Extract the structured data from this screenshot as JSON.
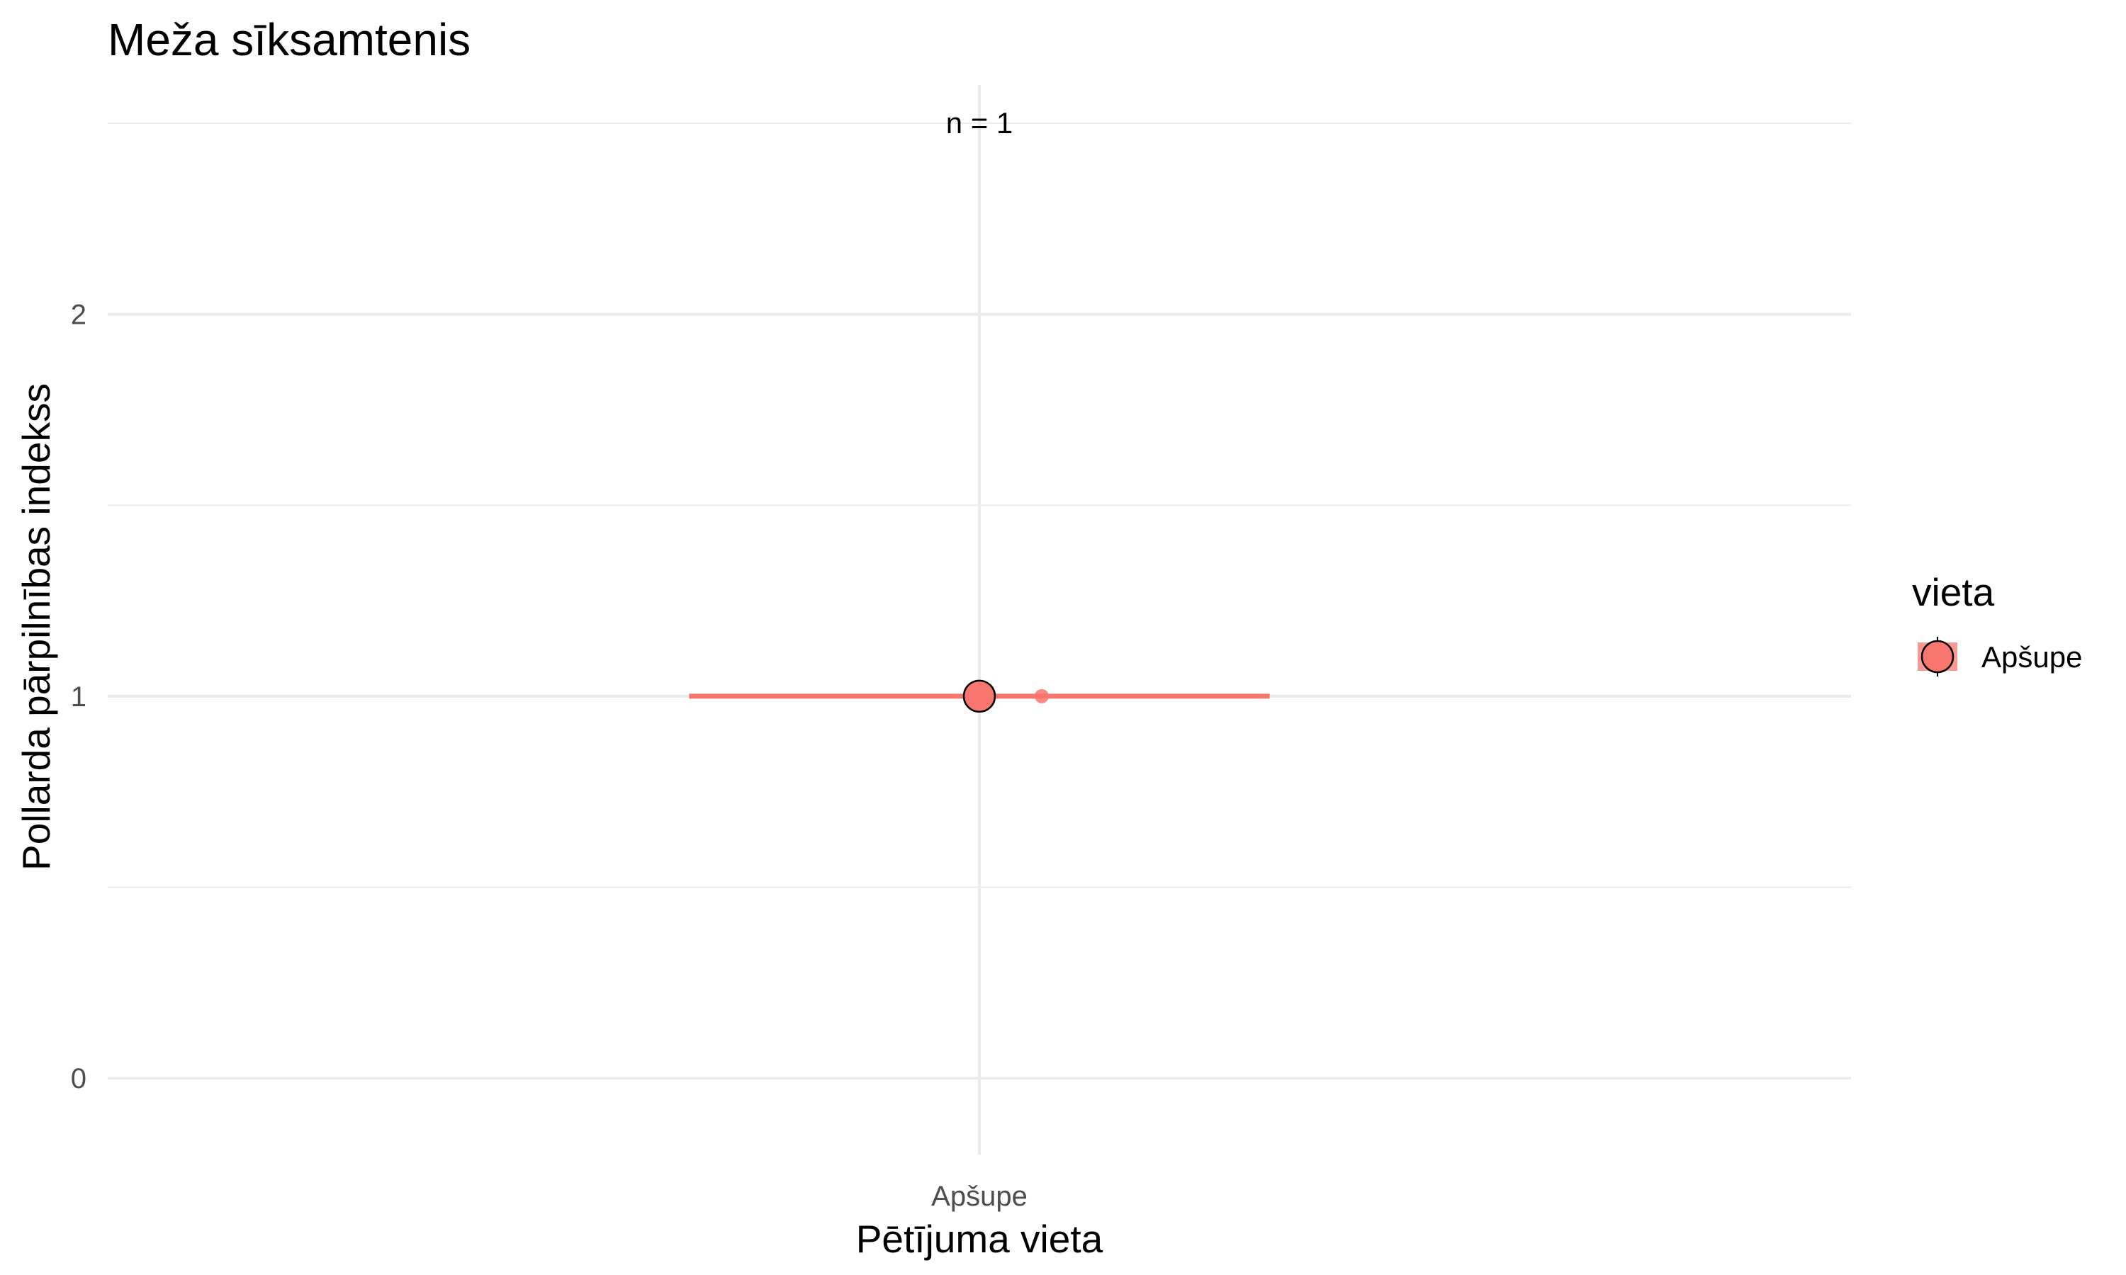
{
  "chart_data": {
    "type": "scatter",
    "title": "Meža sīksamtenis",
    "xlabel": "Pētījuma vieta",
    "ylabel": "Pollarda pārpilnības indekss",
    "categories": [
      "Apšupe"
    ],
    "ylim": [
      -0.2,
      2.6
    ],
    "yticks": [
      0,
      1,
      2
    ],
    "grid": true,
    "series": [
      {
        "name": "Apšupe",
        "color": "#F8766D",
        "mean": 1,
        "range": [
          1,
          1
        ],
        "points": [
          1
        ]
      }
    ],
    "annotations": [
      {
        "category": "Apšupe",
        "text": "n = 1",
        "y": 2.5
      }
    ],
    "legend": {
      "title": "vieta",
      "placement": "right",
      "entries": [
        "Apšupe"
      ]
    }
  }
}
